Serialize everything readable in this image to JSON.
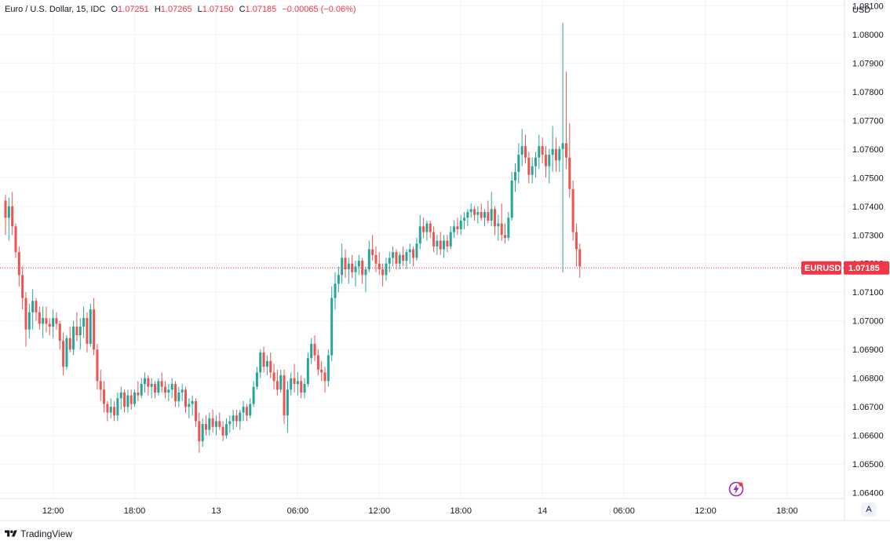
{
  "legend": {
    "title": "Euro / U.S. Dollar, 15, IDC",
    "open_label": "O",
    "open_value": "1.07251",
    "high_label": "H",
    "high_value": "1.07265",
    "low_label": "L",
    "low_value": "1.07150",
    "close_label": "C",
    "close_value": "1.07185",
    "change": "−0.00065 (−0.06%)"
  },
  "currency": "USD",
  "price_tag": {
    "symbol": "EURUSD",
    "price": "1.07185",
    "color": "#f23645"
  },
  "auto_button": "A",
  "brand": "TradingView",
  "colors": {
    "up": "#26a69a",
    "down": "#ef5350",
    "grid": "#f0f3fa",
    "axis_text": "#131722"
  },
  "chart_data": {
    "type": "candlestick",
    "ylim": [
      1.0638,
      1.0812
    ],
    "y_ticks": [
      "1.08100",
      "1.08000",
      "1.07900",
      "1.07800",
      "1.07700",
      "1.07600",
      "1.07500",
      "1.07400",
      "1.07300",
      "1.07200",
      "1.07100",
      "1.07000",
      "1.06900",
      "1.06800",
      "1.06700",
      "1.06600",
      "1.06500",
      "1.06400"
    ],
    "x_ticks": [
      {
        "label": "12:00",
        "bar": 14
      },
      {
        "label": "18:00",
        "bar": 38
      },
      {
        "label": "13",
        "bar": 62
      },
      {
        "label": "06:00",
        "bar": 86
      },
      {
        "label": "12:00",
        "bar": 110
      },
      {
        "label": "18:00",
        "bar": 134
      },
      {
        "label": "14",
        "bar": 158
      },
      {
        "label": "06:00",
        "bar": 182
      },
      {
        "label": "12:00",
        "bar": 206
      },
      {
        "label": "18:00",
        "bar": 230
      }
    ],
    "grid": true,
    "bars": [
      [
        1.0742,
        1.0744,
        1.073,
        1.0736
      ],
      [
        1.0736,
        1.0743,
        1.0728,
        1.074
      ],
      [
        1.074,
        1.0745,
        1.073,
        1.0733
      ],
      [
        1.0733,
        1.0734,
        1.0722,
        1.0724
      ],
      [
        1.0724,
        1.0726,
        1.0712,
        1.0716
      ],
      [
        1.0716,
        1.0719,
        1.0704,
        1.0708
      ],
      [
        1.0708,
        1.071,
        1.0691,
        1.0697
      ],
      [
        1.0697,
        1.0706,
        1.0694,
        1.0703
      ],
      [
        1.0703,
        1.0711,
        1.0697,
        1.0707
      ],
      [
        1.0707,
        1.0708,
        1.07,
        1.0703
      ],
      [
        1.0703,
        1.0705,
        1.0697,
        1.0699
      ],
      [
        1.0699,
        1.0705,
        1.0694,
        1.0701
      ],
      [
        1.0701,
        1.0705,
        1.0696,
        1.0699
      ],
      [
        1.0699,
        1.0701,
        1.0695,
        1.0698
      ],
      [
        1.0698,
        1.0704,
        1.0694,
        1.0701
      ],
      [
        1.0701,
        1.0703,
        1.0697,
        1.0699
      ],
      [
        1.0699,
        1.07,
        1.069,
        1.0693
      ],
      [
        1.0693,
        1.0696,
        1.0681,
        1.0684
      ],
      [
        1.0684,
        1.0695,
        1.0683,
        1.0694
      ],
      [
        1.0694,
        1.0698,
        1.0689,
        1.069
      ],
      [
        1.069,
        1.07,
        1.0688,
        1.0698
      ],
      [
        1.0698,
        1.0703,
        1.0693,
        1.0695
      ],
      [
        1.0695,
        1.0701,
        1.069,
        1.0698
      ],
      [
        1.0698,
        1.0705,
        1.0694,
        1.0701
      ],
      [
        1.0701,
        1.0703,
        1.0689,
        1.0692
      ],
      [
        1.0692,
        1.0706,
        1.0691,
        1.0704
      ],
      [
        1.0704,
        1.0708,
        1.0688,
        1.069
      ],
      [
        1.069,
        1.0692,
        1.0676,
        1.0679
      ],
      [
        1.0679,
        1.0683,
        1.0672,
        1.0676
      ],
      [
        1.0676,
        1.0679,
        1.0668,
        1.0671
      ],
      [
        1.0671,
        1.0672,
        1.0665,
        1.0668
      ],
      [
        1.0668,
        1.0673,
        1.0666,
        1.067
      ],
      [
        1.067,
        1.0672,
        1.0665,
        1.0667
      ],
      [
        1.0667,
        1.0675,
        1.0665,
        1.0673
      ],
      [
        1.0673,
        1.0677,
        1.0669,
        1.0675
      ],
      [
        1.0675,
        1.0676,
        1.0668,
        1.067
      ],
      [
        1.067,
        1.0676,
        1.0668,
        1.0674
      ],
      [
        1.0674,
        1.0676,
        1.0669,
        1.0671
      ],
      [
        1.0671,
        1.0676,
        1.067,
        1.0675
      ],
      [
        1.0675,
        1.0679,
        1.0672,
        1.0674
      ],
      [
        1.0674,
        1.068,
        1.0673,
        1.0678
      ],
      [
        1.0678,
        1.0682,
        1.0675,
        1.068
      ],
      [
        1.068,
        1.0681,
        1.0674,
        1.0677
      ],
      [
        1.0677,
        1.068,
        1.0673,
        1.0678
      ],
      [
        1.0678,
        1.0679,
        1.0673,
        1.0675
      ],
      [
        1.0675,
        1.068,
        1.0674,
        1.0679
      ],
      [
        1.0679,
        1.0682,
        1.0675,
        1.0677
      ],
      [
        1.0677,
        1.0679,
        1.0673,
        1.0675
      ],
      [
        1.0675,
        1.0678,
        1.0672,
        1.0676
      ],
      [
        1.0676,
        1.068,
        1.0673,
        1.0678
      ],
      [
        1.0678,
        1.0679,
        1.067,
        1.0672
      ],
      [
        1.0672,
        1.0677,
        1.067,
        1.0675
      ],
      [
        1.0675,
        1.0678,
        1.0672,
        1.0676
      ],
      [
        1.0676,
        1.0677,
        1.0668,
        1.067
      ],
      [
        1.067,
        1.0673,
        1.0666,
        1.0671
      ],
      [
        1.0671,
        1.0674,
        1.0667,
        1.0672
      ],
      [
        1.0672,
        1.0673,
        1.0663,
        1.0665
      ],
      [
        1.0665,
        1.0668,
        1.0654,
        1.0658
      ],
      [
        1.0658,
        1.0666,
        1.0656,
        1.0664
      ],
      [
        1.0664,
        1.0667,
        1.066,
        1.0662
      ],
      [
        1.0662,
        1.0668,
        1.066,
        1.0666
      ],
      [
        1.0666,
        1.0669,
        1.0661,
        1.0663
      ],
      [
        1.0663,
        1.0667,
        1.066,
        1.0665
      ],
      [
        1.0665,
        1.0668,
        1.0662,
        1.0663
      ],
      [
        1.0663,
        1.0665,
        1.0658,
        1.066
      ],
      [
        1.066,
        1.0666,
        1.0659,
        1.0664
      ],
      [
        1.0664,
        1.0667,
        1.0661,
        1.0665
      ],
      [
        1.0665,
        1.0669,
        1.0662,
        1.0667
      ],
      [
        1.0667,
        1.0669,
        1.0663,
        1.0665
      ],
      [
        1.0665,
        1.0669,
        1.0662,
        1.0668
      ],
      [
        1.0668,
        1.0672,
        1.0665,
        1.067
      ],
      [
        1.067,
        1.0671,
        1.0665,
        1.0667
      ],
      [
        1.0667,
        1.0673,
        1.0666,
        1.0671
      ],
      [
        1.0671,
        1.0679,
        1.067,
        1.0677
      ],
      [
        1.0677,
        1.0684,
        1.0676,
        1.0682
      ],
      [
        1.0682,
        1.069,
        1.068,
        1.0689
      ],
      [
        1.0689,
        1.0691,
        1.0682,
        1.0684
      ],
      [
        1.0684,
        1.0688,
        1.0681,
        1.0686
      ],
      [
        1.0686,
        1.0689,
        1.068,
        1.0682
      ],
      [
        1.0682,
        1.0685,
        1.0676,
        1.0679
      ],
      [
        1.0679,
        1.0683,
        1.0674,
        1.0676
      ],
      [
        1.0676,
        1.0683,
        1.0675,
        1.0681
      ],
      [
        1.0681,
        1.0683,
        1.0664,
        1.0667
      ],
      [
        1.0667,
        1.0679,
        1.0661,
        1.0676
      ],
      [
        1.0676,
        1.0682,
        1.0674,
        1.068
      ],
      [
        1.068,
        1.0685,
        1.0675,
        1.0678
      ],
      [
        1.0678,
        1.0682,
        1.0674,
        1.0679
      ],
      [
        1.0679,
        1.0681,
        1.0673,
        1.0675
      ],
      [
        1.0675,
        1.068,
        1.0673,
        1.0678
      ],
      [
        1.0678,
        1.0689,
        1.0677,
        1.0687
      ],
      [
        1.0687,
        1.0694,
        1.0685,
        1.0692
      ],
      [
        1.0692,
        1.0695,
        1.0686,
        1.0688
      ],
      [
        1.0688,
        1.069,
        1.0681,
        1.0683
      ],
      [
        1.0683,
        1.0686,
        1.0679,
        1.0682
      ],
      [
        1.0682,
        1.0684,
        1.0675,
        1.0679
      ],
      [
        1.0679,
        1.069,
        1.0677,
        1.0688
      ],
      [
        1.0688,
        1.0712,
        1.0686,
        1.0708
      ],
      [
        1.0708,
        1.0717,
        1.0704,
        1.0713
      ],
      [
        1.0713,
        1.0719,
        1.071,
        1.0716
      ],
      [
        1.0716,
        1.0727,
        1.0713,
        1.0722
      ],
      [
        1.0722,
        1.0725,
        1.0715,
        1.0718
      ],
      [
        1.0718,
        1.0722,
        1.0713,
        1.072
      ],
      [
        1.072,
        1.0723,
        1.0715,
        1.0717
      ],
      [
        1.0717,
        1.0721,
        1.0712,
        1.0719
      ],
      [
        1.0719,
        1.0723,
        1.0716,
        1.0721
      ],
      [
        1.0721,
        1.0722,
        1.0713,
        1.0716
      ],
      [
        1.0716,
        1.0719,
        1.071,
        1.0718
      ],
      [
        1.0718,
        1.0728,
        1.0717,
        1.0725
      ],
      [
        1.0725,
        1.073,
        1.0721,
        1.0723
      ],
      [
        1.0723,
        1.0726,
        1.0717,
        1.072
      ],
      [
        1.072,
        1.0724,
        1.0716,
        1.0718
      ],
      [
        1.0718,
        1.072,
        1.0712,
        1.0716
      ],
      [
        1.0716,
        1.0722,
        1.0714,
        1.072
      ],
      [
        1.072,
        1.0724,
        1.0717,
        1.0722
      ],
      [
        1.0722,
        1.0726,
        1.0719,
        1.0724
      ],
      [
        1.0724,
        1.0725,
        1.0718,
        1.072
      ],
      [
        1.072,
        1.0724,
        1.0718,
        1.0723
      ],
      [
        1.0723,
        1.0726,
        1.0719,
        1.0721
      ],
      [
        1.0721,
        1.0725,
        1.0718,
        1.0724
      ],
      [
        1.0724,
        1.0727,
        1.072,
        1.0725
      ],
      [
        1.0725,
        1.0726,
        1.0719,
        1.0722
      ],
      [
        1.0722,
        1.0729,
        1.0721,
        1.0727
      ],
      [
        1.0727,
        1.0737,
        1.0725,
        1.0733
      ],
      [
        1.0733,
        1.0736,
        1.0729,
        1.0731
      ],
      [
        1.0731,
        1.0735,
        1.0728,
        1.0734
      ],
      [
        1.0734,
        1.0735,
        1.0729,
        1.0731
      ],
      [
        1.0731,
        1.0733,
        1.0724,
        1.0726
      ],
      [
        1.0726,
        1.073,
        1.0723,
        1.0728
      ],
      [
        1.0728,
        1.0731,
        1.0723,
        1.0725
      ],
      [
        1.0725,
        1.073,
        1.0722,
        1.0728
      ],
      [
        1.0728,
        1.073,
        1.0724,
        1.0726
      ],
      [
        1.0726,
        1.0733,
        1.0725,
        1.0731
      ],
      [
        1.0731,
        1.0735,
        1.0729,
        1.0733
      ],
      [
        1.0733,
        1.0736,
        1.073,
        1.0732
      ],
      [
        1.0732,
        1.0737,
        1.073,
        1.0735
      ],
      [
        1.0735,
        1.0738,
        1.0732,
        1.0736
      ],
      [
        1.0736,
        1.0739,
        1.0733,
        1.0738
      ],
      [
        1.0738,
        1.0741,
        1.0736,
        1.0739
      ],
      [
        1.0739,
        1.074,
        1.0735,
        1.0737
      ],
      [
        1.0737,
        1.074,
        1.0734,
        1.0738
      ],
      [
        1.0738,
        1.0741,
        1.0735,
        1.0736
      ],
      [
        1.0736,
        1.0739,
        1.0733,
        1.0738
      ],
      [
        1.0738,
        1.0742,
        1.0734,
        1.0735
      ],
      [
        1.0735,
        1.0745,
        1.0733,
        1.0739
      ],
      [
        1.0739,
        1.074,
        1.073,
        1.0733
      ],
      [
        1.0733,
        1.0737,
        1.0728,
        1.0734
      ],
      [
        1.0734,
        1.0741,
        1.0728,
        1.073
      ],
      [
        1.073,
        1.0734,
        1.0727,
        1.0729
      ],
      [
        1.0729,
        1.0738,
        1.0728,
        1.0736
      ],
      [
        1.0736,
        1.0752,
        1.0735,
        1.0749
      ],
      [
        1.0749,
        1.0755,
        1.0745,
        1.0752
      ],
      [
        1.0752,
        1.0762,
        1.0748,
        1.0758
      ],
      [
        1.0758,
        1.0767,
        1.0754,
        1.0761
      ],
      [
        1.0761,
        1.0765,
        1.0755,
        1.0757
      ],
      [
        1.0757,
        1.0759,
        1.0748,
        1.0751
      ],
      [
        1.0751,
        1.0757,
        1.0748,
        1.0754
      ],
      [
        1.0754,
        1.0759,
        1.075,
        1.0757
      ],
      [
        1.0757,
        1.0765,
        1.0753,
        1.0761
      ],
      [
        1.0761,
        1.0764,
        1.0755,
        1.0758
      ],
      [
        1.0758,
        1.0761,
        1.075,
        1.0754
      ],
      [
        1.0754,
        1.076,
        1.0748,
        1.0758
      ],
      [
        1.0758,
        1.0768,
        1.0752,
        1.076
      ],
      [
        1.076,
        1.0764,
        1.0752,
        1.0756
      ],
      [
        1.0756,
        1.0761,
        1.0752,
        1.076
      ],
      [
        1.076,
        1.0804,
        1.0717,
        1.0762
      ],
      [
        1.0762,
        1.0787,
        1.0753,
        1.0757
      ],
      [
        1.0757,
        1.0769,
        1.0743,
        1.0746
      ],
      [
        1.0746,
        1.0749,
        1.0728,
        1.0731
      ],
      [
        1.0731,
        1.0734,
        1.0719,
        1.0725
      ],
      [
        1.0725,
        1.0727,
        1.0715,
        1.0719
      ]
    ]
  }
}
